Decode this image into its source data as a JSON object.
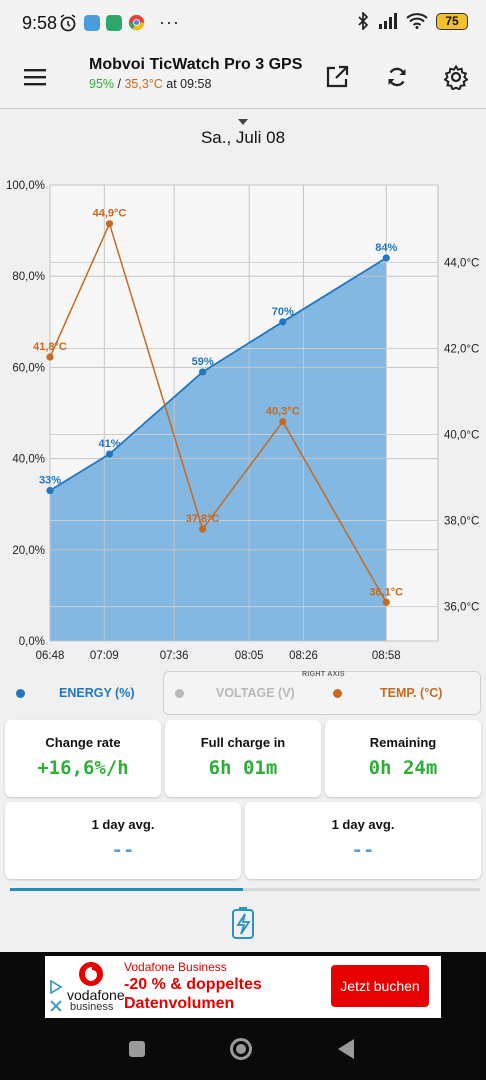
{
  "status_bar": {
    "time": "9:58",
    "battery_level": "75"
  },
  "app_bar": {
    "title": "Mobvoi TicWatch Pro 3 GPS",
    "battery_pct": "95%",
    "separator": " / ",
    "temperature": "35,3°C",
    "time_suffix": " at 09:58"
  },
  "date": "Sa., Juli 08",
  "chart_data": {
    "type": "line",
    "x_ticks": [
      "06:48",
      "07:09",
      "07:36",
      "08:05",
      "08:26",
      "08:58"
    ],
    "left_axis": {
      "ticks": [
        "0,0%",
        "20,0%",
        "40,0%",
        "60,0%",
        "80,0%",
        "100,0%"
      ],
      "ylim": [
        0,
        100
      ]
    },
    "right_axis": {
      "ticks": [
        "36,0°C",
        "38,0°C",
        "40,0°C",
        "42,0°C",
        "44,0°C"
      ],
      "ylim": [
        35.2,
        45.8
      ]
    },
    "series": [
      {
        "name": "ENERGY (%)",
        "type": "area",
        "color": "#1f77c4",
        "fill": "#82b8e2",
        "axis": "left",
        "x": [
          "06:48",
          "07:11",
          "07:47",
          "08:18",
          "08:58"
        ],
        "values": [
          33,
          41,
          59,
          70,
          84
        ],
        "labels": [
          "33%",
          "41%",
          "59%",
          "70%",
          "84%"
        ]
      },
      {
        "name": "TEMP. (°C)",
        "type": "line",
        "color": "#c8691e",
        "axis": "right",
        "x": [
          "06:48",
          "07:11",
          "07:47",
          "08:18",
          "08:58"
        ],
        "values": [
          41.8,
          44.9,
          37.8,
          40.3,
          36.1
        ],
        "labels": [
          "41,8°C",
          "44,9°C",
          "37,8°C",
          "40,3°C",
          "36,1°C"
        ]
      }
    ],
    "grid": true
  },
  "legend": {
    "energy": "ENERGY (%)",
    "voltage": "VOLTAGE (V)",
    "temp": "TEMP. (°C)",
    "right_axis_tag": "RIGHT AXIS",
    "energy_color": "#1f77c4",
    "voltage_color": "#b8b8b8",
    "temp_color": "#c8691e"
  },
  "cards": {
    "change_rate": {
      "label": "Change rate",
      "value": "+16,6%/h"
    },
    "full_charge": {
      "label": "Full charge in",
      "value": "6h 01m"
    },
    "remaining": {
      "label": "Remaining",
      "value": "0h 24m"
    },
    "avg_left": {
      "label": "1 day avg.",
      "value": "--"
    },
    "avg_right": {
      "label": "1 day avg.",
      "value": "--"
    }
  },
  "ad": {
    "brand": "vodafone",
    "brand_sub": "business",
    "heading": "Vodafone Business",
    "line1": "-20 % & doppeltes",
    "line2": "Datenvolumen",
    "cta": "Jetzt buchen"
  },
  "icons": {
    "menu": "hamburger-menu-icon",
    "open_external": "open-external-icon",
    "refresh": "refresh-icon",
    "settings": "settings-icon"
  }
}
